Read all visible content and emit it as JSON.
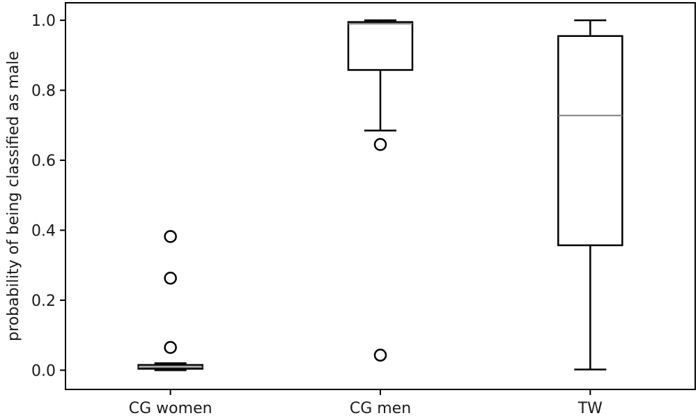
{
  "chart_data": {
    "type": "box",
    "categories": [
      "CG women",
      "CG men",
      "TW"
    ],
    "ylabel": "probability of being classified as male",
    "xlabel": "",
    "ylim": [
      -0.055,
      1.05
    ],
    "yticks": [
      "0.0",
      "0.2",
      "0.4",
      "0.6",
      "0.8",
      "1.0"
    ],
    "ytick_values": [
      0.0,
      0.2,
      0.4,
      0.6,
      0.8,
      1.0
    ],
    "grid": false,
    "boxes": [
      {
        "name": "CG women",
        "whisker_low": 0.0,
        "q1": 0.004,
        "median": 0.009,
        "q3": 0.015,
        "whisker_high": 0.02,
        "outliers": [
          0.065,
          0.263,
          0.382
        ]
      },
      {
        "name": "CG men",
        "whisker_low": 0.685,
        "q1": 0.858,
        "median": 0.99,
        "q3": 0.995,
        "whisker_high": 1.0,
        "outliers": [
          0.645,
          0.043
        ]
      },
      {
        "name": "TW",
        "whisker_low": 0.002,
        "q1": 0.357,
        "median": 0.728,
        "q3": 0.955,
        "whisker_high": 1.0,
        "outliers": []
      }
    ],
    "colors": {
      "box": "#000000",
      "median": "#808080",
      "axis": "#000000"
    }
  }
}
